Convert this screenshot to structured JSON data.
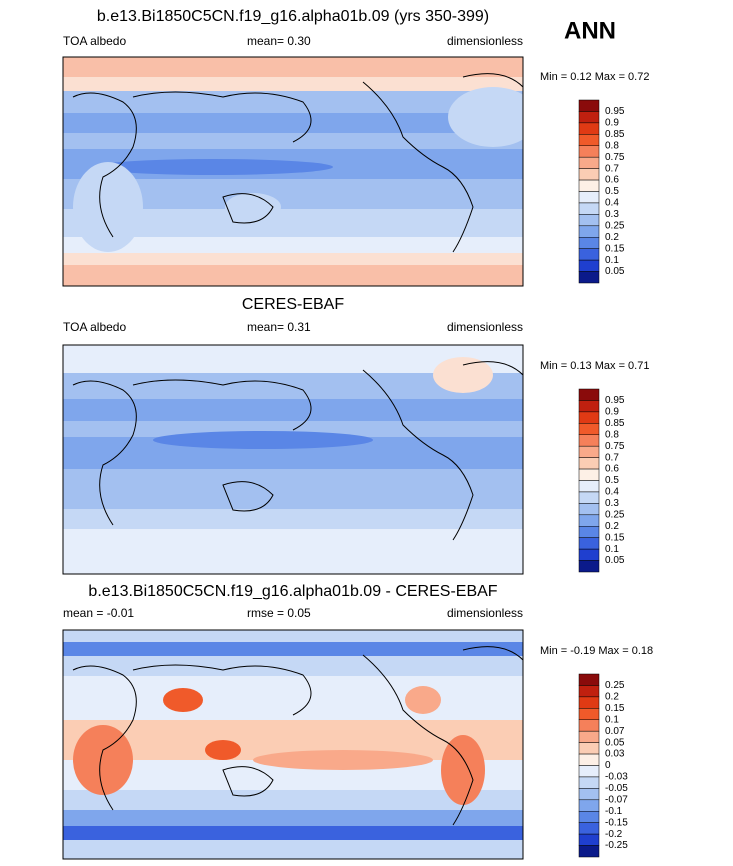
{
  "season": "ANN",
  "panels": [
    {
      "title": "b.e13.Bi1850C5CN.f19_g16.alpha01b.09 (yrs 350-399)",
      "left": "TOA albedo",
      "center": "mean=  0.30",
      "right": "dimensionless",
      "minmax": "Min =  0.12 Max =  0.72",
      "colorbar": {
        "labels": [
          "0.95",
          "0.9",
          "0.85",
          "0.8",
          "0.75",
          "0.7",
          "0.6",
          "0.5",
          "0.4",
          "0.3",
          "0.25",
          "0.2",
          "0.15",
          "0.1",
          "0.05"
        ],
        "colors": [
          "#8a0b0b",
          "#c0200f",
          "#e03a14",
          "#f05a2a",
          "#f5805a",
          "#f9a98a",
          "#fbcdb4",
          "#fdf0e6",
          "#e6eefb",
          "#c5d8f5",
          "#a3c0f0",
          "#7fa6ec",
          "#5a86e6",
          "#3a62de",
          "#1f3fcf",
          "#0b1a8a"
        ]
      }
    },
    {
      "title": "CERES-EBAF",
      "left": "TOA albedo",
      "center": "mean=  0.31",
      "right": "dimensionless",
      "minmax": "Min =  0.13 Max =  0.71",
      "colorbar": {
        "labels": [
          "0.95",
          "0.9",
          "0.85",
          "0.8",
          "0.75",
          "0.7",
          "0.6",
          "0.5",
          "0.4",
          "0.3",
          "0.25",
          "0.2",
          "0.15",
          "0.1",
          "0.05"
        ],
        "colors": [
          "#8a0b0b",
          "#c0200f",
          "#e03a14",
          "#f05a2a",
          "#f5805a",
          "#f9a98a",
          "#fbcdb4",
          "#fdf0e6",
          "#e6eefb",
          "#c5d8f5",
          "#a3c0f0",
          "#7fa6ec",
          "#5a86e6",
          "#3a62de",
          "#1f3fcf",
          "#0b1a8a"
        ]
      }
    },
    {
      "title": "b.e13.Bi1850C5CN.f19_g16.alpha01b.09 - CERES-EBAF",
      "left": "mean =  -0.01",
      "center": "rmse =  0.05",
      "right": "dimensionless",
      "minmax": "Min =  -0.19 Max =  0.18",
      "colorbar": {
        "labels": [
          "0.25",
          "0.2",
          "0.15",
          "0.1",
          "0.07",
          "0.05",
          "0.03",
          "0",
          "-0.03",
          "-0.05",
          "-0.07",
          "-0.1",
          "-0.15",
          "-0.2",
          "-0.25"
        ],
        "colors": [
          "#8a0b0b",
          "#c0200f",
          "#e03a14",
          "#f05a2a",
          "#f5805a",
          "#f9a98a",
          "#fbcdb4",
          "#fdf0e6",
          "#e6eefb",
          "#c5d8f5",
          "#a3c0f0",
          "#7fa6ec",
          "#5a86e6",
          "#3a62de",
          "#1f3fcf",
          "#0b1a8a"
        ]
      }
    }
  ]
}
